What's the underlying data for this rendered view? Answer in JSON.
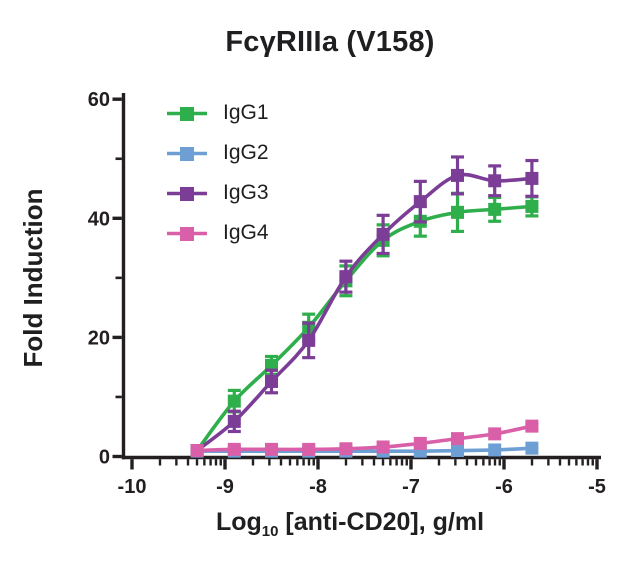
{
  "title": "FcγRIIIa (V158)",
  "colors": {
    "axis": "#231f20",
    "background": "#ffffff"
  },
  "axes": {
    "x": {
      "label_pre": "Log",
      "label_sub": "10",
      "label_post": " [anti-CD20], g/ml",
      "min": -10,
      "max": -5,
      "major_ticks": [
        -10,
        -9,
        -8,
        -7,
        -6,
        -5
      ],
      "minor_tick_style": "log10"
    },
    "y": {
      "label": "Fold Induction",
      "min": 0,
      "max": 60,
      "major_ticks": [
        0,
        20,
        40,
        60
      ],
      "minor_ticks": [
        10,
        30,
        50
      ]
    }
  },
  "chart_data": {
    "type": "scatter",
    "title": "FcγRIIIa (V158)",
    "xlabel": "Log10 [anti-CD20], g/ml",
    "ylabel": "Fold Induction",
    "xlim": [
      -10,
      -5
    ],
    "ylim": [
      0,
      60
    ],
    "grid": false,
    "legend_position": "upper-left",
    "marker": "square",
    "x": [
      -9.3,
      -8.9,
      -8.5,
      -8.1,
      -7.7,
      -7.3,
      -6.9,
      -6.5,
      -6.1,
      -5.7
    ],
    "series": [
      {
        "name": "IgG1",
        "color": "#2fae4c",
        "values": [
          1.0,
          9.3,
          15.3,
          21.7,
          29.5,
          36.3,
          39.5,
          41.0,
          41.5,
          42.0
        ],
        "errors": [
          0,
          1.8,
          1.5,
          2.2,
          2.5,
          2.6,
          2.5,
          3.2,
          2.0,
          1.6
        ]
      },
      {
        "name": "IgG2",
        "color": "#6d9fd5",
        "values": [
          0.9,
          0.9,
          0.9,
          0.9,
          0.9,
          0.9,
          0.9,
          1.0,
          1.1,
          1.4
        ],
        "errors": [
          0,
          0,
          0,
          0,
          0,
          0,
          0,
          0,
          0,
          0
        ]
      },
      {
        "name": "IgG3",
        "color": "#7b3d96",
        "values": [
          1.0,
          5.9,
          12.6,
          19.5,
          30.2,
          37.3,
          42.8,
          47.2,
          46.3,
          46.7
        ],
        "errors": [
          0,
          1.7,
          1.9,
          2.9,
          2.6,
          3.2,
          3.4,
          3.1,
          2.5,
          3.0
        ]
      },
      {
        "name": "IgG4",
        "color": "#d960a8",
        "values": [
          1.0,
          1.2,
          1.2,
          1.2,
          1.3,
          1.6,
          2.2,
          3.0,
          3.8,
          5.1
        ],
        "errors": [
          0,
          0,
          0,
          0,
          0,
          0,
          0,
          0,
          0,
          0.4
        ]
      }
    ]
  }
}
